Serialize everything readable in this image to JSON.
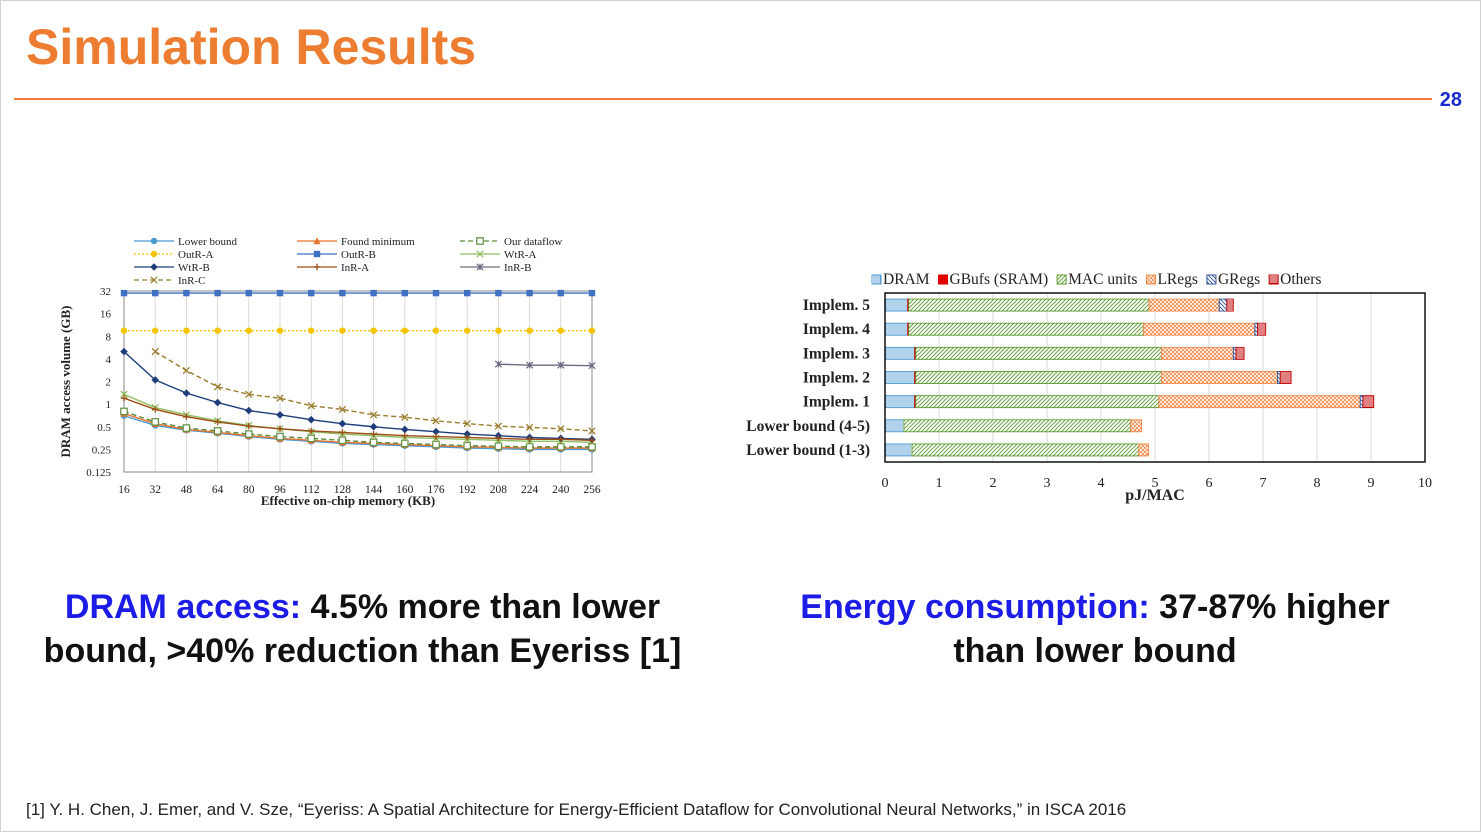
{
  "slide": {
    "title": "Simulation Results",
    "page_number": "28",
    "accent_color": "#ec7d31",
    "highlight_color": "#1c1ce6"
  },
  "chart_data": [
    {
      "type": "line",
      "xlabel": "Effective on-chip memory (KB)",
      "ylabel": "DRAM access volume (GB)",
      "yscale": "log2",
      "ylim": [
        0.125,
        32
      ],
      "xlim": [
        16,
        256
      ],
      "x_ticks": [
        16,
        32,
        48,
        64,
        80,
        96,
        112,
        128,
        144,
        160,
        176,
        192,
        208,
        224,
        240,
        256
      ],
      "y_ticks": [
        0.125,
        0.25,
        0.5,
        1,
        2,
        4,
        8,
        16,
        32
      ],
      "y_tick_labels": [
        "0.125",
        "0.25",
        "0.5",
        "1",
        "2",
        "4",
        "8",
        "16",
        "32"
      ],
      "grid": "vertical",
      "legend_position": "top",
      "series": [
        {
          "name": "Lower bound",
          "color": "#4b9ad6",
          "marker": "circle",
          "dash": "",
          "x": [
            16,
            32,
            48,
            64,
            80,
            96,
            112,
            128,
            144,
            160,
            176,
            192,
            208,
            224,
            240,
            256
          ],
          "values": [
            0.7,
            0.52,
            0.45,
            0.41,
            0.37,
            0.34,
            0.32,
            0.3,
            0.29,
            0.28,
            0.27,
            0.26,
            0.255,
            0.25,
            0.25,
            0.25
          ]
        },
        {
          "name": "Found minimum",
          "color": "#e8732e",
          "marker": "triangle",
          "dash": "",
          "x": [
            16,
            32,
            48,
            64,
            80,
            96,
            112,
            128,
            144,
            160,
            176,
            192,
            208,
            224,
            240,
            256
          ],
          "values": [
            0.75,
            0.55,
            0.46,
            0.42,
            0.38,
            0.35,
            0.33,
            0.31,
            0.3,
            0.29,
            0.28,
            0.27,
            0.265,
            0.26,
            0.26,
            0.26
          ]
        },
        {
          "name": "Our dataflow",
          "color": "#5d8c3c",
          "marker": "square-open",
          "dash": "5,3",
          "x": [
            16,
            32,
            48,
            64,
            80,
            96,
            112,
            128,
            144,
            160,
            176,
            192,
            208,
            224,
            240,
            256
          ],
          "values": [
            0.8,
            0.58,
            0.48,
            0.44,
            0.4,
            0.37,
            0.35,
            0.33,
            0.31,
            0.3,
            0.29,
            0.28,
            0.275,
            0.27,
            0.27,
            0.27
          ]
        },
        {
          "name": "OutR-A",
          "color": "#f5c400",
          "marker": "circle",
          "dash": "2,2",
          "x": [
            16,
            32,
            48,
            64,
            80,
            96,
            112,
            128,
            144,
            160,
            176,
            192,
            208,
            224,
            240,
            256
          ],
          "values": [
            9.5,
            9.5,
            9.5,
            9.5,
            9.5,
            9.5,
            9.5,
            9.5,
            9.5,
            9.5,
            9.5,
            9.5,
            9.5,
            9.5,
            9.5,
            9.5
          ]
        },
        {
          "name": "OutR-B",
          "color": "#3f72c2",
          "marker": "square",
          "dash": "",
          "x": [
            16,
            32,
            48,
            64,
            80,
            96,
            112,
            128,
            144,
            160,
            176,
            192,
            208,
            224,
            240,
            256
          ],
          "values": [
            30,
            30,
            30,
            30,
            30,
            30,
            30,
            30,
            30,
            30,
            30,
            30,
            30,
            30,
            30,
            30
          ]
        },
        {
          "name": "WtR-A",
          "color": "#8fbf60",
          "marker": "x",
          "dash": "",
          "x": [
            16,
            32,
            48,
            64,
            80,
            96,
            112,
            128,
            144,
            160,
            176,
            192,
            208,
            224,
            240,
            256
          ],
          "values": [
            1.35,
            0.9,
            0.72,
            0.6,
            0.52,
            0.47,
            0.43,
            0.4,
            0.38,
            0.36,
            0.35,
            0.34,
            0.33,
            0.32,
            0.32,
            0.31
          ]
        },
        {
          "name": "WtR-B",
          "color": "#1f3d7a",
          "marker": "diamond",
          "dash": "",
          "x": [
            16,
            32,
            48,
            64,
            80,
            96,
            112,
            128,
            144,
            160,
            176,
            192,
            208,
            224,
            240,
            256
          ],
          "values": [
            5.0,
            2.1,
            1.4,
            1.05,
            0.82,
            0.72,
            0.62,
            0.55,
            0.5,
            0.46,
            0.43,
            0.4,
            0.38,
            0.36,
            0.35,
            0.34
          ]
        },
        {
          "name": "InR-A",
          "color": "#a04a14",
          "marker": "plus",
          "dash": "",
          "x": [
            16,
            32,
            48,
            64,
            80,
            96,
            112,
            128,
            144,
            160,
            176,
            192,
            208,
            224,
            240,
            256
          ],
          "values": [
            1.2,
            0.85,
            0.68,
            0.58,
            0.51,
            0.47,
            0.44,
            0.42,
            0.4,
            0.38,
            0.37,
            0.36,
            0.35,
            0.34,
            0.34,
            0.33
          ]
        },
        {
          "name": "InR-B",
          "color": "#6a6a80",
          "marker": "star",
          "dash": "",
          "x": [
            208,
            224,
            240,
            256
          ],
          "values": [
            3.4,
            3.3,
            3.3,
            3.25
          ]
        },
        {
          "name": "InR-C",
          "color": "#9a7d2c",
          "marker": "x",
          "dash": "5,3",
          "x": [
            32,
            48,
            64,
            80,
            96,
            112,
            128,
            144,
            160,
            176,
            192,
            208,
            224,
            240,
            256
          ],
          "values": [
            5.0,
            2.8,
            1.7,
            1.35,
            1.2,
            0.95,
            0.85,
            0.72,
            0.67,
            0.6,
            0.55,
            0.51,
            0.49,
            0.47,
            0.44
          ]
        }
      ]
    },
    {
      "type": "bar",
      "orientation": "horizontal",
      "stacked": true,
      "xlabel": "pJ/MAC",
      "xlim": [
        0,
        10
      ],
      "x_ticks": [
        0,
        1,
        2,
        3,
        4,
        5,
        6,
        7,
        8,
        9,
        10
      ],
      "grid": "vertical",
      "legend_position": "top",
      "categories": [
        "Implem. 5",
        "Implem. 4",
        "Implem. 3",
        "Implem. 2",
        "Implem. 1",
        "Lower bound (4-5)",
        "Lower bound (1-3)"
      ],
      "series": [
        {
          "name": "DRAM",
          "color": "#4f9bd1",
          "pattern": "vlines",
          "values": [
            0.42,
            0.42,
            0.55,
            0.55,
            0.55,
            0.35,
            0.5
          ]
        },
        {
          "name": "GBufs (SRAM)",
          "color": "#e00000",
          "pattern": "solid",
          "values": [
            0.02,
            0.02,
            0.02,
            0.02,
            0.02,
            0.0,
            0.0
          ]
        },
        {
          "name": "MAC units",
          "color": "#5a9a2e",
          "pattern": "diag",
          "values": [
            4.45,
            4.35,
            4.55,
            4.55,
            4.5,
            4.2,
            4.2
          ]
        },
        {
          "name": "LRegs",
          "color": "#f08a4b",
          "pattern": "cross",
          "values": [
            1.3,
            2.06,
            1.33,
            2.15,
            3.73,
            0.2,
            0.18
          ]
        },
        {
          "name": "GRegs",
          "color": "#2f5597",
          "pattern": "diag2",
          "values": [
            0.14,
            0.05,
            0.05,
            0.05,
            0.05,
            0.0,
            0.0
          ]
        },
        {
          "name": "Others",
          "color": "#c00000",
          "pattern": "hlines",
          "values": [
            0.12,
            0.15,
            0.15,
            0.2,
            0.2,
            0.0,
            0.0
          ]
        }
      ]
    }
  ],
  "captions": {
    "left": {
      "highlight": "DRAM access:",
      "line1_rest": " 4.5% more than lower",
      "line2": "bound, >40% reduction than Eyeriss [1]"
    },
    "right": {
      "highlight": "Energy consumption:",
      "line1_rest": " 37-87% higher",
      "line2": "than lower bound"
    }
  },
  "footnote": "[1] Y. H. Chen, J. Emer, and V. Sze, “Eyeriss: A Spatial Architecture for Energy-Efficient Dataflow for Convolutional Neural Networks,” in ISCA 2016"
}
